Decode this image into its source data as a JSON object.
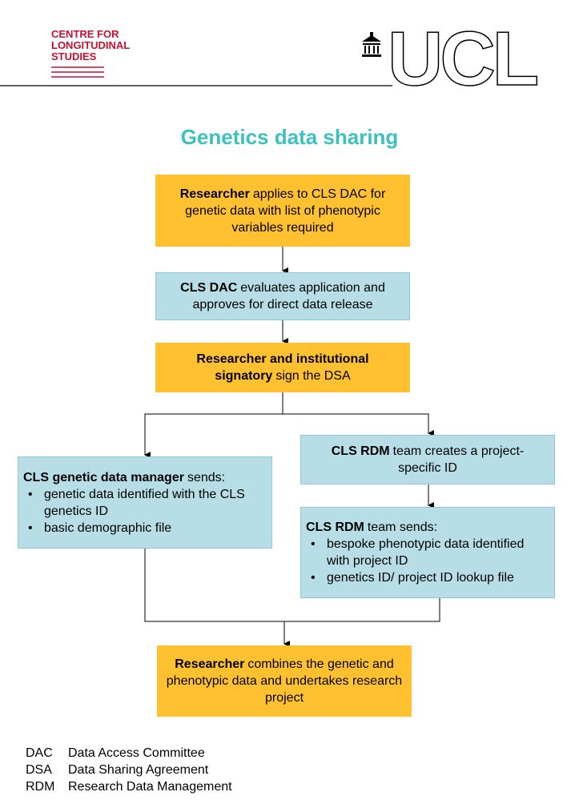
{
  "header": {
    "logo_lines": [
      "CENTRE FOR",
      "LONGITUDINAL",
      "STUDIES"
    ],
    "ucl": "UCL"
  },
  "title": "Genetics data sharing",
  "nodes": [
    {
      "bold": "Researcher",
      "text": "applies to CLS DAC for genetic data with list of phenotypic variables required"
    },
    {
      "bold": "CLS DAC",
      "text": "evaluates application and approves for direct data release"
    },
    {
      "bold": "Researcher and institutional signatory",
      "text": "sign the DSA"
    },
    {
      "bold": "CLS genetic data manager",
      "text": "sends:",
      "bullets": [
        "genetic data identified with the CLS genetics ID",
        "basic demographic file"
      ]
    },
    {
      "bold": "CLS RDM",
      "text": "team creates a project-specific ID"
    },
    {
      "bold": "CLS RDM",
      "text": "team sends:",
      "bullets": [
        "bespoke phenotypic data identified with project ID",
        "genetics ID/ project ID lookup file"
      ]
    },
    {
      "bold": "Researcher",
      "text": "combines the genetic and phenotypic data and undertakes research project"
    }
  ],
  "glossary": [
    {
      "abbr": "DAC",
      "meaning": "Data Access Committee"
    },
    {
      "abbr": "DSA",
      "meaning": "Data Sharing Agreement"
    },
    {
      "abbr": "RDM",
      "meaning": "Research Data Management"
    }
  ]
}
